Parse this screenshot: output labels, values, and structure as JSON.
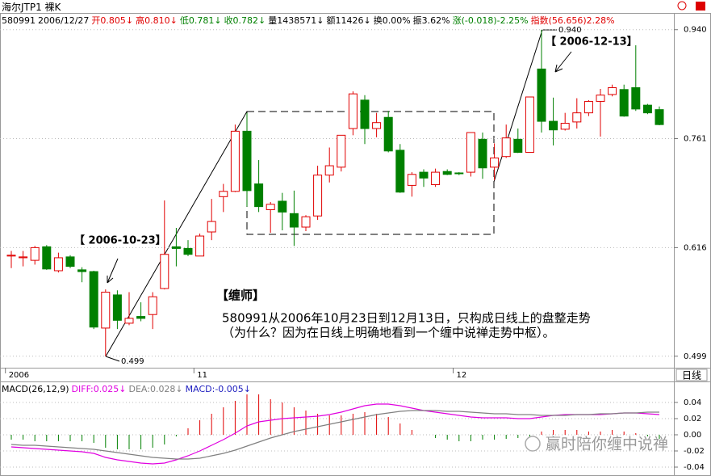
{
  "title": "海尔JTP1 裸K",
  "quote_bar": [
    {
      "text": "580991",
      "color": "#000000"
    },
    {
      "text": "2006/12/27",
      "color": "#000000"
    },
    {
      "text": "开0.805↓",
      "color": "#e00000"
    },
    {
      "text": "高0.810↓",
      "color": "#e00000"
    },
    {
      "text": "低0.781↓",
      "color": "#008000"
    },
    {
      "text": "收0.782↓",
      "color": "#008000"
    },
    {
      "text": "量1438571↓",
      "color": "#000000"
    },
    {
      "text": "额11426↓",
      "color": "#000000"
    },
    {
      "text": "换0.00%",
      "color": "#000000"
    },
    {
      "text": "振3.62%",
      "color": "#000000"
    },
    {
      "text": "涨(-0.018)-2.25%",
      "color": "#008000"
    },
    {
      "text": "指数(56.656)2.28%",
      "color": "#e00000"
    }
  ],
  "period_label": "日线",
  "watermark": "赢时陪你缠中说禅",
  "chart_data": [
    {
      "type": "candlestick",
      "categories": [
        "2006",
        null,
        null,
        null,
        null,
        null,
        null,
        null,
        null,
        null,
        null,
        null,
        null,
        null,
        null,
        null,
        "11",
        null,
        null,
        null,
        null,
        null,
        null,
        null,
        null,
        null,
        null,
        null,
        null,
        null,
        null,
        null,
        null,
        null,
        null,
        null,
        null,
        null,
        "12",
        null,
        null,
        null,
        null,
        null,
        null,
        null,
        null,
        null,
        null,
        null,
        null,
        null,
        null,
        null,
        null,
        null
      ],
      "open": [
        0.606,
        0.604,
        0.601,
        0.617,
        0.589,
        0.605,
        0.59,
        0.588,
        0.527,
        0.562,
        0.532,
        0.539,
        0.541,
        0.569,
        0.617,
        0.615,
        0.606,
        0.635,
        0.68,
        0.687,
        0.772,
        0.697,
        0.663,
        0.674,
        0.658,
        0.641,
        0.655,
        0.709,
        0.72,
        0.776,
        0.82,
        0.776,
        0.793,
        0.744,
        0.695,
        0.713,
        0.696,
        0.714,
        0.712,
        0.713,
        0.76,
        0.72,
        0.735,
        0.76,
        0.741,
        0.871,
        0.787,
        0.775,
        0.786,
        0.8,
        0.818,
        0.829,
        0.837,
        0.84,
        0.812,
        0.805
      ],
      "high": [
        0.612,
        0.612,
        0.618,
        0.619,
        0.61,
        0.607,
        0.593,
        0.589,
        0.568,
        0.567,
        0.565,
        0.554,
        0.565,
        0.675,
        0.64,
        0.625,
        0.633,
        0.677,
        0.697,
        0.782,
        0.8,
        0.73,
        0.673,
        0.685,
        0.688,
        0.656,
        0.722,
        0.748,
        0.766,
        0.834,
        0.828,
        0.8,
        0.803,
        0.753,
        0.713,
        0.717,
        0.718,
        0.717,
        0.713,
        0.77,
        0.77,
        0.754,
        0.782,
        0.776,
        0.825,
        0.94,
        0.824,
        0.8,
        0.823,
        0.82,
        0.838,
        0.845,
        0.845,
        0.912,
        0.814,
        0.81
      ],
      "low": [
        0.592,
        0.594,
        0.596,
        0.59,
        0.587,
        0.592,
        0.576,
        0.526,
        0.499,
        0.526,
        0.53,
        0.534,
        0.526,
        0.568,
        0.594,
        0.606,
        0.606,
        0.625,
        0.66,
        0.686,
        0.667,
        0.66,
        0.634,
        0.637,
        0.618,
        0.636,
        0.65,
        0.699,
        0.714,
        0.766,
        0.753,
        0.763,
        0.741,
        0.685,
        0.68,
        0.693,
        0.693,
        0.709,
        0.709,
        0.707,
        0.704,
        0.702,
        0.733,
        0.74,
        0.741,
        0.77,
        0.751,
        0.773,
        0.776,
        0.795,
        0.764,
        0.826,
        0.794,
        0.803,
        0.798,
        0.781
      ],
      "close": [
        0.607,
        0.605,
        0.616,
        0.591,
        0.604,
        0.594,
        0.588,
        0.528,
        0.565,
        0.535,
        0.537,
        0.537,
        0.56,
        0.608,
        0.615,
        0.608,
        0.63,
        0.648,
        0.687,
        0.772,
        0.688,
        0.667,
        0.67,
        0.66,
        0.641,
        0.654,
        0.709,
        0.722,
        0.766,
        0.83,
        0.776,
        0.785,
        0.743,
        0.686,
        0.71,
        0.705,
        0.713,
        0.71,
        0.711,
        0.77,
        0.719,
        0.733,
        0.762,
        0.741,
        0.825,
        0.787,
        0.774,
        0.784,
        0.8,
        0.818,
        0.828,
        0.84,
        0.795,
        0.806,
        0.8,
        0.782
      ],
      "up_color": "#e00000",
      "down_color": "#008000",
      "ylim": [
        0.488,
        0.965
      ],
      "yticks": [
        {
          "value": 0.94,
          "label": "0.940"
        },
        0.761,
        0.616,
        0.499
      ],
      "log_scale": true,
      "grid": true,
      "annotations": [
        "【 2006-10-23】",
        "【 2006-12-13】",
        "【缠师】",
        "580991从2006年10月23日到12月13日，只构成日线上的盘整走势",
        "（为什么？因为在日线上明确地看到一个缠中说禅走势中枢）。",
        "0.940",
        "0.499"
      ]
    },
    {
      "type": "macd",
      "header": [
        {
          "text": "MACD(26,12,9)",
          "color": "#000000"
        },
        {
          "text": "DIFF:0.025↓",
          "color": "#e000e0"
        },
        {
          "text": "DEA:0.028↓",
          "color": "#808080"
        },
        {
          "text": "MACD:-0.005↓",
          "color": "#2020c0"
        }
      ],
      "series": [
        {
          "color": "#e000e0",
          "values": [
            -0.015,
            -0.016,
            -0.017,
            -0.018,
            -0.019,
            -0.02,
            -0.021,
            -0.023,
            -0.028,
            -0.031,
            -0.033,
            -0.035,
            -0.036,
            -0.035,
            -0.031,
            -0.026,
            -0.02,
            -0.013,
            -0.006,
            0.002,
            0.011,
            0.016,
            0.018,
            0.02,
            0.021,
            0.022,
            0.023,
            0.025,
            0.028,
            0.032,
            0.036,
            0.038,
            0.038,
            0.036,
            0.033,
            0.03,
            0.028,
            0.026,
            0.024,
            0.022,
            0.021,
            0.021,
            0.021,
            0.02,
            0.02,
            0.022,
            0.024,
            0.025,
            0.025,
            0.025,
            0.025,
            0.026,
            0.027,
            0.027,
            0.026,
            0.025
          ]
        },
        {
          "color": "#808080",
          "values": [
            -0.012,
            -0.013,
            -0.013,
            -0.014,
            -0.015,
            -0.016,
            -0.017,
            -0.018,
            -0.02,
            -0.022,
            -0.024,
            -0.026,
            -0.028,
            -0.029,
            -0.03,
            -0.03,
            -0.029,
            -0.026,
            -0.023,
            -0.019,
            -0.014,
            -0.009,
            -0.004,
            0.0,
            0.004,
            0.007,
            0.01,
            0.013,
            0.016,
            0.019,
            0.022,
            0.025,
            0.027,
            0.029,
            0.03,
            0.03,
            0.03,
            0.029,
            0.029,
            0.028,
            0.027,
            0.026,
            0.026,
            0.025,
            0.025,
            0.024,
            0.024,
            0.024,
            0.025,
            0.025,
            0.026,
            0.026,
            0.027,
            0.027,
            0.028,
            0.028
          ]
        }
      ],
      "histogram": {
        "up_color": "#e00000",
        "down_color": "#008000",
        "values": [
          -0.006,
          -0.006,
          -0.008,
          -0.008,
          -0.008,
          -0.008,
          -0.008,
          -0.01,
          -0.016,
          -0.018,
          -0.018,
          -0.018,
          -0.016,
          -0.012,
          -0.002,
          0.008,
          0.018,
          0.026,
          0.034,
          0.042,
          0.05,
          0.05,
          0.044,
          0.04,
          0.034,
          0.03,
          0.026,
          0.024,
          0.024,
          0.026,
          0.028,
          0.026,
          0.022,
          0.014,
          0.006,
          0.0,
          -0.004,
          -0.006,
          -0.008,
          -0.008,
          -0.006,
          -0.006,
          -0.005,
          -0.004,
          -0.002,
          0.004,
          0.006,
          0.006,
          0.006,
          0.004,
          0.004,
          0.006,
          0.004,
          0.002,
          -0.002,
          -0.005
        ]
      },
      "ylim": [
        -0.05,
        0.063
      ],
      "yticks": [
        0.04,
        0.02,
        {
          "value": 0,
          "label": "0.00"
        },
        -0.02,
        -0.04
      ],
      "grid": true
    }
  ]
}
